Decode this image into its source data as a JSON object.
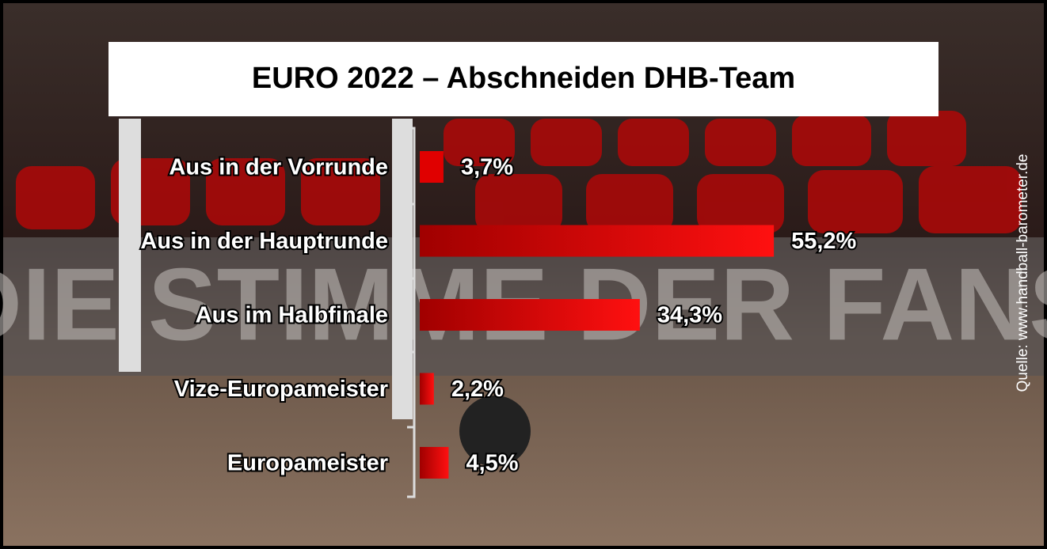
{
  "chart_data": {
    "type": "bar",
    "orientation": "horizontal",
    "title": "EURO 2022 – Abschneiden DHB-Team",
    "categories": [
      "Aus in der Vorrunde",
      "Aus in der Hauptrunde",
      "Aus im Halbfinale",
      "Vize-Europameister",
      "Europameister"
    ],
    "values": [
      3.7,
      55.2,
      34.3,
      2.2,
      4.5
    ],
    "value_labels": [
      "3,7%",
      "55,2%",
      "34,3%",
      "2,2%",
      "4,5%"
    ],
    "color": "#e00000",
    "source": "Quelle: www.handball-barometer.de",
    "background_text": "DIE STIMME DER FANS"
  }
}
